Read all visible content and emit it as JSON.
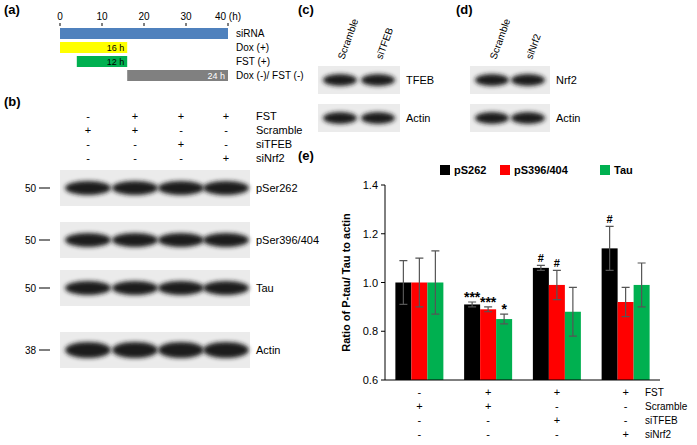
{
  "panel_labels": [
    "(a)",
    "(b)",
    "(c)",
    "(d)",
    "(e)"
  ],
  "timeline": {
    "xlim": [
      0,
      40
    ],
    "xticks": [
      0,
      10,
      20,
      30,
      {
        "value": 40,
        "label": "40 (h)"
      }
    ],
    "bars": [
      {
        "label": "siRNA",
        "start": 0,
        "end": 40,
        "color": "#4f81bd"
      },
      {
        "label": "Dox (+)",
        "start": 0,
        "end": 16,
        "duration": "16 h",
        "color": "#ffff00"
      },
      {
        "label": "FST (+)",
        "start": 4,
        "end": 16,
        "duration": "12 h",
        "color": "#00b050"
      },
      {
        "label": "Dox (-)/ FST (-)",
        "start": 16,
        "end": 40,
        "duration": "24 h",
        "color": "#808080"
      }
    ]
  },
  "blot_b": {
    "conditions": [
      {
        "label": "FST",
        "values": [
          "-",
          "+",
          "+",
          "+"
        ]
      },
      {
        "label": "Scramble",
        "values": [
          "+",
          "+",
          "-",
          "-"
        ]
      },
      {
        "label": "siTFEB",
        "values": [
          "-",
          "-",
          "+",
          "-"
        ]
      },
      {
        "label": "siNrf2",
        "values": [
          "-",
          "-",
          "-",
          "+"
        ]
      }
    ],
    "rows": [
      {
        "label": "pSer262",
        "marker": 50
      },
      {
        "label": "pSer396/404",
        "marker": 50
      },
      {
        "label": "Tau",
        "marker": 50
      },
      {
        "label": "Actin",
        "marker": 38
      }
    ]
  },
  "blot_c": {
    "lanes": [
      "Scramble",
      "siTFEB"
    ],
    "rows": [
      "TFEB",
      "Actin"
    ]
  },
  "blot_d": {
    "lanes": [
      "Scramble",
      "siNrf2"
    ],
    "rows": [
      "Nrf2",
      "Actin"
    ]
  },
  "chart_data": {
    "type": "bar",
    "y_label": "Ratio of P-tau/ Tau to actin",
    "categories": [
      null,
      null,
      null,
      null
    ],
    "ylim": [
      0.6,
      1.4
    ],
    "yticks": [
      0.6,
      0.8,
      {
        "value": 1,
        "label": "1.0"
      },
      1.2,
      1.4
    ],
    "legend": "top",
    "series": [
      {
        "name": "pS262",
        "color": "#000000",
        "values": [
          1,
          0.91,
          1.06,
          1.14
        ],
        "errors": [
          0.09,
          0.01,
          0.01,
          0.09
        ],
        "annotations": [
          null,
          "***",
          "#",
          "#"
        ]
      },
      {
        "name": "pS396/404",
        "color": "#ff0000",
        "values": [
          1,
          0.89,
          0.99,
          0.92
        ],
        "errors": [
          0.1,
          0.01,
          0.06,
          0.06
        ],
        "annotations": [
          null,
          "***",
          "#",
          null
        ]
      },
      {
        "name": "Tau",
        "color": "#00b050",
        "values": [
          1,
          0.85,
          0.88,
          0.99
        ],
        "errors": [
          0.13,
          0.02,
          0.1,
          0.09
        ],
        "annotations": [
          null,
          "*",
          null,
          null
        ]
      }
    ],
    "conditions": [
      {
        "label": "FST",
        "values": [
          "-",
          "+",
          "+",
          "+"
        ]
      },
      {
        "label": "Scramble",
        "values": [
          "+",
          "+",
          "-",
          "-"
        ]
      },
      {
        "label": "siTFEB",
        "values": [
          "-",
          "-",
          "+",
          "-"
        ]
      },
      {
        "label": "siNrf2",
        "values": [
          "-",
          "-",
          "-",
          "+"
        ]
      }
    ]
  }
}
